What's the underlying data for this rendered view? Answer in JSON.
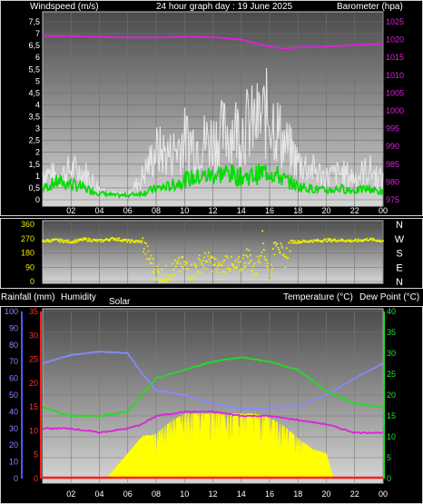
{
  "header": {
    "left_label": "Windspeed (m/s)",
    "center_label": "24 hour graph day : 19 June 2025",
    "right_label": "Barometer (hpa)"
  },
  "lower_header": {
    "rainfall_label": "Rainfall (mm)",
    "humidity_label": "Humidity",
    "solar_label": "Solar",
    "temperature_label": "Temperature (°C)",
    "dewpoint_label": "Dew Point (°C)"
  },
  "colors": {
    "gust": "#e6e6e6",
    "wind": "#00dd00",
    "barometer": "#dd22dd",
    "direction": "#eeee00",
    "temperature": "#22dd22",
    "humidity": "#8888ff",
    "dewpoint": "#dd22dd",
    "solar": "#ffff00",
    "rain": "#ff2020"
  },
  "chart_data": [
    {
      "type": "line",
      "panel": "wind-barometer",
      "x_ticks": [
        "02",
        "04",
        "06",
        "08",
        "10",
        "12",
        "14",
        "16",
        "18",
        "20",
        "22",
        "00"
      ],
      "y_left_label": "Windspeed (m/s)",
      "y_left_ticks": [
        "0",
        "0,5",
        "1",
        "1,5",
        "2",
        "2,5",
        "3",
        "3,5",
        "4",
        "4,5",
        "5",
        "5,5",
        "6",
        "6,5",
        "7",
        "7,5"
      ],
      "ylim_left": [
        0,
        7.5
      ],
      "y_right_label": "Barometer (hpa)",
      "y_right_ticks": [
        "975",
        "980",
        "985",
        "990",
        "995",
        "1000",
        "1005",
        "1010",
        "1015",
        "1020",
        "1025"
      ],
      "ylim_right": [
        975,
        1025
      ],
      "series": [
        {
          "hour": [
            0,
            1,
            2,
            3,
            4,
            5,
            6,
            7,
            8,
            9,
            10,
            11,
            12,
            13,
            14,
            15,
            16,
            17,
            18,
            19,
            20,
            21,
            22,
            23,
            24
          ],
          "values": [
            1.5,
            1.2,
            1.6,
            1.4,
            0.6,
            0.3,
            0.2,
            1.2,
            2.6,
            2.4,
            3.2,
            3.0,
            3.2,
            3.6,
            3.8,
            4.0,
            4.6,
            3.0,
            2.0,
            1.6,
            1.2,
            1.4,
            1.2,
            1.6,
            1.0
          ]
        },
        {
          "hour": [
            0,
            1,
            2,
            3,
            4,
            5,
            6,
            7,
            8,
            9,
            10,
            11,
            12,
            13,
            14,
            15,
            16,
            17,
            18,
            19,
            20,
            21,
            22,
            23,
            24
          ],
          "values": [
            0.5,
            0.8,
            0.7,
            0.5,
            0.3,
            0.2,
            0.2,
            0.3,
            0.5,
            0.6,
            0.9,
            1.0,
            1.1,
            1.2,
            1.0,
            1.1,
            1.3,
            0.9,
            0.6,
            0.5,
            0.4,
            0.5,
            0.4,
            0.5,
            0.3
          ]
        },
        {
          "hour": [
            0,
            2,
            4,
            6,
            8,
            10,
            12,
            14,
            15,
            16,
            17,
            18,
            20,
            22,
            24
          ],
          "values": [
            1021,
            1021,
            1020.8,
            1020.6,
            1020.6,
            1020.8,
            1020.7,
            1020,
            1019,
            1018,
            1017.5,
            1017.8,
            1018,
            1018.5,
            1018.8
          ]
        }
      ]
    },
    {
      "type": "scatter",
      "panel": "wind-direction",
      "y_ticks": [
        "0",
        "90",
        "180",
        "270",
        "360"
      ],
      "ylim": [
        0,
        360
      ],
      "compass_labels": [
        "N",
        "W",
        "S",
        "E",
        "N"
      ],
      "series": [
        {
          "hour": [
            0,
            1,
            2,
            3,
            4,
            5,
            6,
            7,
            7.5,
            8,
            8.5,
            9,
            9.5,
            10,
            10.5,
            11,
            11.5,
            12,
            12.5,
            13,
            13.5,
            14,
            14.5,
            15,
            15.5,
            16,
            16.5,
            17,
            17.5,
            18,
            19,
            20,
            21,
            22,
            23,
            24
          ],
          "values": [
            255,
            260,
            250,
            265,
            255,
            270,
            255,
            250,
            150,
            60,
            30,
            60,
            90,
            100,
            60,
            110,
            130,
            120,
            60,
            140,
            70,
            110,
            170,
            50,
            260,
            30,
            290,
            120,
            250,
            250,
            255,
            260,
            260,
            255,
            265,
            255
          ]
        }
      ]
    },
    {
      "type": "area",
      "panel": "climate",
      "x_ticks": [
        "02",
        "04",
        "06",
        "08",
        "10",
        "12",
        "14",
        "16",
        "18",
        "20",
        "22",
        "00"
      ],
      "y_humidity_ticks": [
        "0",
        "10",
        "20",
        "30",
        "40",
        "50",
        "60",
        "70",
        "80",
        "90",
        "100"
      ],
      "ylim_humidity": [
        0,
        100
      ],
      "y_rain_ticks": [
        "0",
        "5",
        "10",
        "15",
        "20",
        "25",
        "30",
        "35"
      ],
      "ylim_rain": [
        0,
        35
      ],
      "y_temp_ticks": [
        "0",
        "5",
        "10",
        "15",
        "20",
        "25",
        "30",
        "35",
        "40"
      ],
      "ylim_temp": [
        0,
        40
      ],
      "series": [
        {
          "hour": [
            0,
            2,
            4,
            6,
            7,
            8,
            10,
            12,
            14,
            16,
            18,
            20,
            22,
            24
          ],
          "values": [
            69,
            74,
            76,
            75,
            63,
            53,
            50,
            45,
            42,
            42,
            43,
            50,
            60,
            69
          ]
        },
        {
          "hour": [
            0,
            2,
            4,
            6,
            7,
            8,
            10,
            12,
            14,
            16,
            18,
            20,
            22,
            24
          ],
          "values": [
            17,
            15,
            15,
            16,
            20,
            24,
            26,
            28,
            29,
            28,
            26,
            21,
            18,
            17
          ]
        },
        {
          "hour": [
            0,
            2,
            4,
            6,
            7,
            8,
            10,
            12,
            14,
            16,
            18,
            20,
            22,
            24
          ],
          "values": [
            12,
            12,
            11,
            12,
            13,
            15,
            16,
            16,
            15,
            15,
            14,
            13,
            11,
            11
          ]
        },
        {
          "hour": [
            4.5,
            5,
            6,
            7,
            8,
            9,
            10,
            11,
            12,
            13,
            14,
            15,
            16,
            17,
            18,
            19,
            20,
            20.5
          ],
          "values": [
            0,
            2,
            6,
            10,
            11,
            14,
            16,
            16,
            16,
            16,
            16,
            16,
            15,
            13,
            10,
            7,
            6,
            0
          ]
        },
        {
          "hour": [
            0,
            24
          ],
          "values": [
            0,
            0
          ]
        }
      ]
    }
  ]
}
